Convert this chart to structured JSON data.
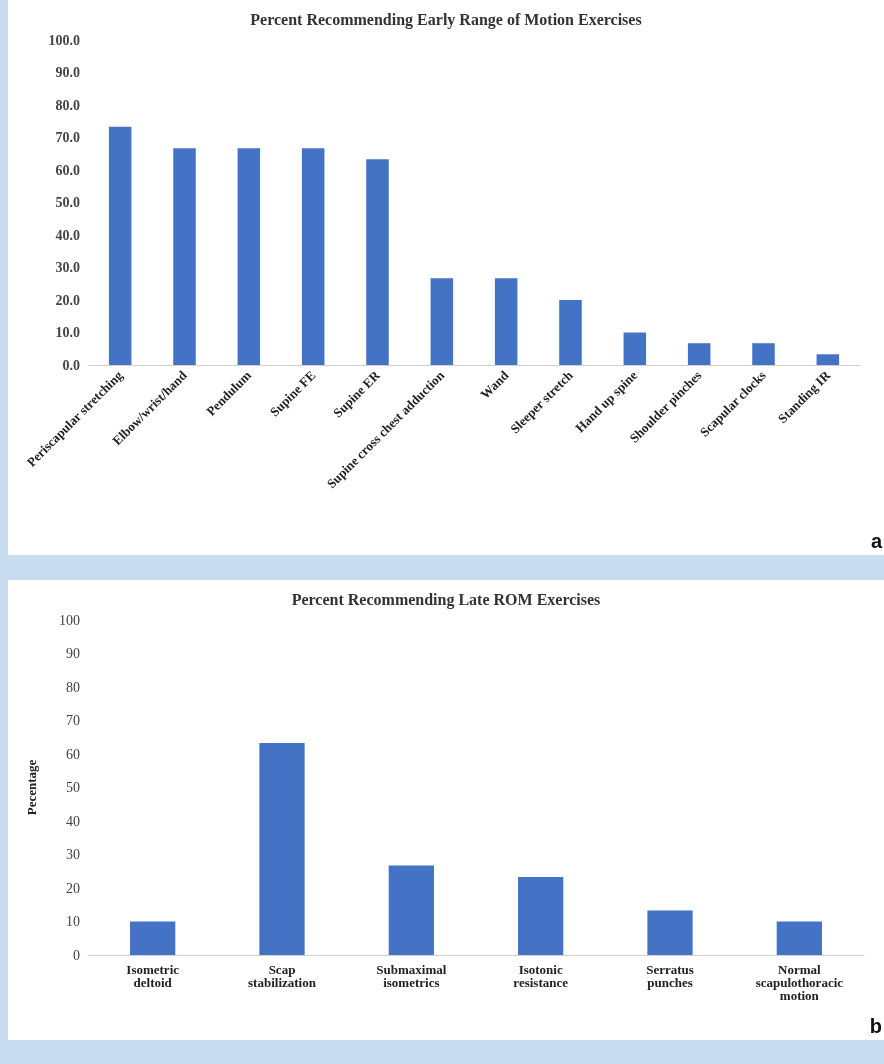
{
  "chart_data": [
    {
      "type": "bar",
      "title": "Percent Recommending Early Range of Motion Exercises",
      "categories": [
        "Periscapular stretching",
        "Elbow/wrist/hand",
        "Pendulum",
        "Supine FE",
        "Supine ER",
        "Supine cross chest adduction",
        "Wand",
        "Sleeper stretch",
        "Hand up spine",
        "Shoulder pinches",
        "Scapular clocks",
        "Standing IR"
      ],
      "series": [
        {
          "color": "#4472c4",
          "values": [
            73.3,
            66.7,
            66.7,
            66.7,
            63.3,
            26.7,
            26.7,
            20.0,
            10.0,
            6.7,
            6.7,
            3.3
          ]
        }
      ],
      "ylim": [
        0,
        100
      ],
      "yticks": [
        {
          "value": 0,
          "label": "0.0"
        },
        {
          "value": 10,
          "label": "10.0"
        },
        {
          "value": 20,
          "label": "20.0"
        },
        {
          "value": 30,
          "label": "30.0"
        },
        {
          "value": 40,
          "label": "40.0"
        },
        {
          "value": 50,
          "label": "50.0"
        },
        {
          "value": 60,
          "label": "60.0"
        },
        {
          "value": 70,
          "label": "70.0"
        },
        {
          "value": 80,
          "label": "80.0"
        },
        {
          "value": 90,
          "label": "90.0"
        },
        {
          "value": 100,
          "label": "100.0"
        }
      ],
      "grid": false,
      "annotations": [
        "a"
      ]
    },
    {
      "type": "bar",
      "title": "Percent Recommending Late ROM Exercises",
      "ylabel": "Pecentage",
      "categories": [
        "Isometric deltoid",
        "Scap stabilization",
        "Submaximal isometrics",
        "Isotonic resistance",
        "Serratus punches",
        "Normal scapulothoracic motion"
      ],
      "series": [
        {
          "color": "#4472c4",
          "values": [
            10.0,
            63.3,
            26.7,
            23.3,
            13.3,
            10.0
          ]
        }
      ],
      "ylim": [
        0,
        100
      ],
      "yticks": [
        0,
        10,
        20,
        30,
        40,
        50,
        60,
        70,
        80,
        90,
        100
      ],
      "grid": false,
      "annotations": [
        "b"
      ]
    }
  ]
}
